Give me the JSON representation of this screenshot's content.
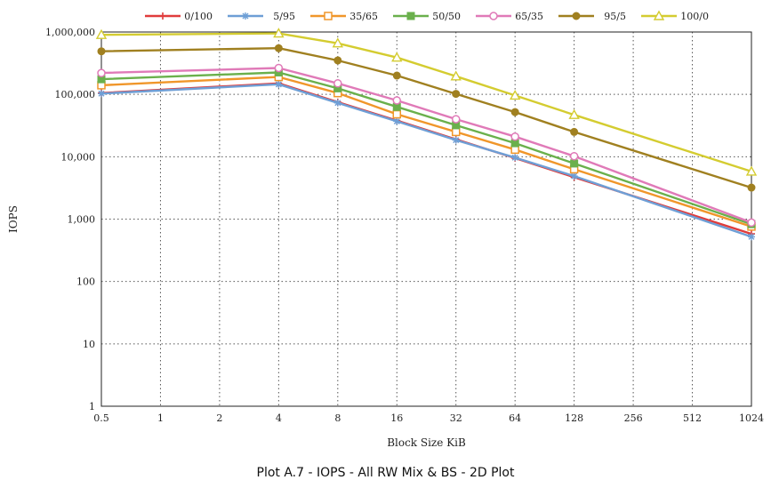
{
  "caption": "Plot A.7 - IOPS - All RW Mix & BS - 2D Plot",
  "chart_data": {
    "type": "line",
    "title": "",
    "xlabel": "Block Size KiB",
    "ylabel": "IOPS",
    "x_scale": "log2",
    "y_scale": "log10",
    "categories": [
      "0.5",
      "1",
      "2",
      "4",
      "8",
      "16",
      "32",
      "64",
      "128",
      "256",
      "512",
      "1024"
    ],
    "y_ticks": [
      {
        "value": 1,
        "label": "1"
      },
      {
        "value": 10,
        "label": "10"
      },
      {
        "value": 100,
        "label": "100"
      },
      {
        "value": 1000,
        "label": "1,000"
      },
      {
        "value": 10000,
        "label": "10,000"
      },
      {
        "value": 100000,
        "label": "100,000"
      },
      {
        "value": 1000000,
        "label": "1,000,000"
      }
    ],
    "ylim": [
      1,
      1000000
    ],
    "grid": true,
    "legend_position": "top",
    "x": [
      0.5,
      4,
      8,
      16,
      32,
      64,
      128,
      1024
    ],
    "series": [
      {
        "name": "0/100",
        "color": "#e03c3c",
        "marker": "plus",
        "values": [
          105000,
          150000,
          75000,
          38000,
          19000,
          9500,
          4700,
          580
        ]
      },
      {
        "name": "5/95",
        "color": "#6e9fd6",
        "marker": "star",
        "values": [
          103000,
          145000,
          73000,
          37000,
          18500,
          9700,
          4900,
          520
        ]
      },
      {
        "name": "35/65",
        "color": "#f0962a",
        "marker": "square-open",
        "values": [
          140000,
          190000,
          105000,
          48000,
          25000,
          13000,
          6300,
          760
        ]
      },
      {
        "name": "50/50",
        "color": "#6ab04c",
        "marker": "square-filled",
        "values": [
          175000,
          225000,
          125000,
          63000,
          32000,
          16500,
          7800,
          830
        ]
      },
      {
        "name": "65/35",
        "color": "#e07ab8",
        "marker": "circle-open",
        "values": [
          220000,
          265000,
          150000,
          80000,
          40000,
          21000,
          10200,
          880
        ]
      },
      {
        "name": "95/5",
        "color": "#a08020",
        "marker": "circle-filled",
        "values": [
          490000,
          550000,
          350000,
          200000,
          102000,
          52000,
          25000,
          3200
        ]
      },
      {
        "name": "100/0",
        "color": "#d4cc30",
        "marker": "triangle-open",
        "values": [
          900000,
          950000,
          660000,
          390000,
          195000,
          96000,
          47000,
          5800
        ]
      }
    ]
  }
}
